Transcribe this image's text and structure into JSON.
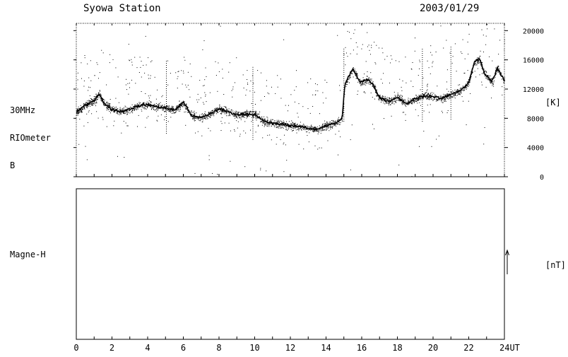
{
  "header": {
    "station": "Syowa Station",
    "date": "2003/01/29"
  },
  "riometer": {
    "label_lines": [
      "30MHz",
      "RIOmeter",
      "B"
    ],
    "unit": "[K]"
  },
  "magnetometer": {
    "label": "Magne-H",
    "unit": "[nT]"
  },
  "chart_data": [
    {
      "type": "scatter",
      "title": "",
      "xlabel": "",
      "ylabel": "",
      "x_unit_label": "UT",
      "xlim": [
        0,
        24
      ],
      "ylim": [
        0,
        21000
      ],
      "x_ticks": [
        0,
        2,
        4,
        6,
        8,
        10,
        12,
        14,
        16,
        18,
        20,
        22,
        24
      ],
      "x_tick_labels": [
        "0",
        "2",
        "4",
        "6",
        "8",
        "10",
        "12",
        "14",
        "16",
        "18",
        "20",
        "22",
        "24UT"
      ],
      "y_ticks": [
        0,
        4000,
        8000,
        12000,
        16000,
        20000
      ],
      "y_tick_labels": [
        "0",
        "4000",
        "8000",
        "12000",
        "16000",
        "20000"
      ],
      "grid": false,
      "series": [
        {
          "x": [
            0,
            0.5,
            1,
            1.3,
            1.5,
            2,
            2.5,
            3,
            3.5,
            4,
            4.5,
            5,
            5.5,
            6,
            6.5,
            7,
            7.5,
            8,
            8.5,
            9,
            9.5,
            10,
            10.5,
            11,
            11.5,
            12,
            12.5,
            13,
            13.5,
            14,
            14.5,
            14.9,
            15.05,
            15.5,
            15.9,
            16.3,
            16.6,
            17,
            17.5,
            18,
            18.5,
            19,
            19.5,
            20,
            20.5,
            21,
            21.5,
            22,
            22.3,
            22.6,
            22.9,
            23.3,
            23.6,
            24
          ],
          "values": [
            8800,
            9800,
            10500,
            11300,
            10200,
            9200,
            8900,
            9300,
            9700,
            9900,
            9600,
            9400,
            9100,
            10200,
            8300,
            8100,
            8600,
            9300,
            8900,
            8500,
            8600,
            8500,
            7600,
            7300,
            7200,
            7000,
            6900,
            6600,
            6500,
            7000,
            7300,
            7900,
            12600,
            14800,
            12900,
            13300,
            12800,
            10800,
            10300,
            10900,
            10000,
            10700,
            11100,
            11000,
            10700,
            11300,
            11700,
            12900,
            15600,
            16200,
            14000,
            13000,
            14900,
            13200
          ]
        }
      ]
    },
    {
      "type": "line",
      "title": "",
      "xlabel": "",
      "ylabel": "",
      "xlim": [
        0,
        24
      ],
      "series": []
    }
  ]
}
